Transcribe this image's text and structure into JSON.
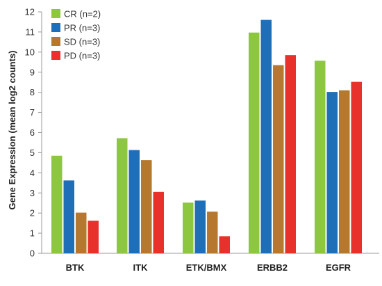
{
  "chart_data": {
    "type": "bar",
    "categories": [
      "BTK",
      "ITK",
      "ETK/BMX",
      "ERBB2",
      "EGFR"
    ],
    "series": [
      {
        "name": "CR (n=2)",
        "color": "#8dc63f",
        "values": [
          4.85,
          5.72,
          2.52,
          10.97,
          9.57
        ]
      },
      {
        "name": "PR (n=3)",
        "color": "#1f6fb8",
        "values": [
          3.62,
          5.13,
          2.62,
          11.6,
          8.02
        ]
      },
      {
        "name": "SD (n=3)",
        "color": "#b5782e",
        "values": [
          2.02,
          4.63,
          2.07,
          9.35,
          8.1
        ]
      },
      {
        "name": "PD (n=3)",
        "color": "#e8312a",
        "values": [
          1.62,
          3.05,
          0.85,
          9.85,
          8.52
        ]
      }
    ],
    "xlabel": "",
    "ylabel": "Gene Expression (mean log2 counts)",
    "ylim": [
      0,
      12
    ],
    "yticks": [
      "0",
      "1",
      "2",
      "3",
      "4",
      "5",
      "6",
      "7",
      "8",
      "9",
      "10",
      "11",
      "12"
    ],
    "grid": false,
    "legend_position": "top-left"
  }
}
